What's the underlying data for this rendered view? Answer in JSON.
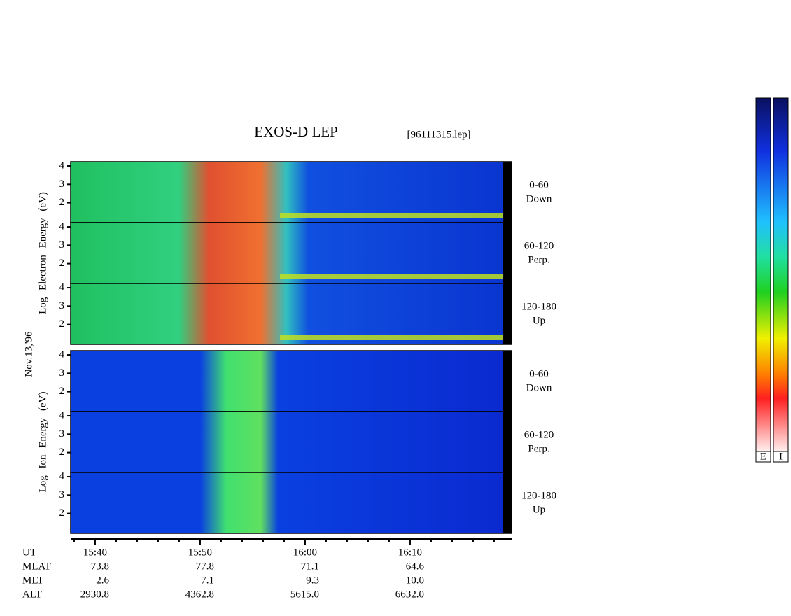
{
  "chart_data": {
    "type": "spectrogram",
    "title": "EXOS-D LEP",
    "file": "[96111315.lep]",
    "date_label": "Nov.13,'96",
    "groups": [
      {
        "ylabel": "Log Electron Energy (eV)",
        "panels": [
          {
            "angle": "0-60",
            "direction": "Down"
          },
          {
            "angle": "60-120",
            "direction": "Perp."
          },
          {
            "angle": "120-180",
            "direction": "Up"
          }
        ]
      },
      {
        "ylabel": "Log Ion Energy (eV)",
        "panels": [
          {
            "angle": "0-60",
            "direction": "Down"
          },
          {
            "angle": "60-120",
            "direction": "Perp."
          },
          {
            "angle": "120-180",
            "direction": "Up"
          }
        ]
      }
    ],
    "ylim": [
      0.92,
      4.23
    ],
    "yticks": [
      2,
      3,
      4
    ],
    "xlim": [
      37.67,
      79.67
    ],
    "xticks": [
      {
        "value": 40,
        "label": "15:40"
      },
      {
        "value": 50,
        "label": "15:50"
      },
      {
        "value": 60,
        "label": "16:00"
      },
      {
        "value": 70,
        "label": "16:10"
      }
    ],
    "xminorticks": [
      38,
      42,
      44,
      46,
      48,
      52,
      54,
      56,
      58,
      62,
      64,
      66,
      68,
      72,
      74,
      76,
      78
    ],
    "orbit": {
      "labels": [
        "UT",
        "MLAT",
        "MLT",
        "ALT"
      ],
      "rows": [
        [
          "73.8",
          "77.8",
          "71.1",
          "64.6"
        ],
        [
          "2.6",
          "7.1",
          "9.3",
          "10.0"
        ],
        [
          "2930.8",
          "4362.8",
          "5615.0",
          "6632.0"
        ]
      ]
    },
    "colorbars": [
      "E",
      "I"
    ]
  }
}
